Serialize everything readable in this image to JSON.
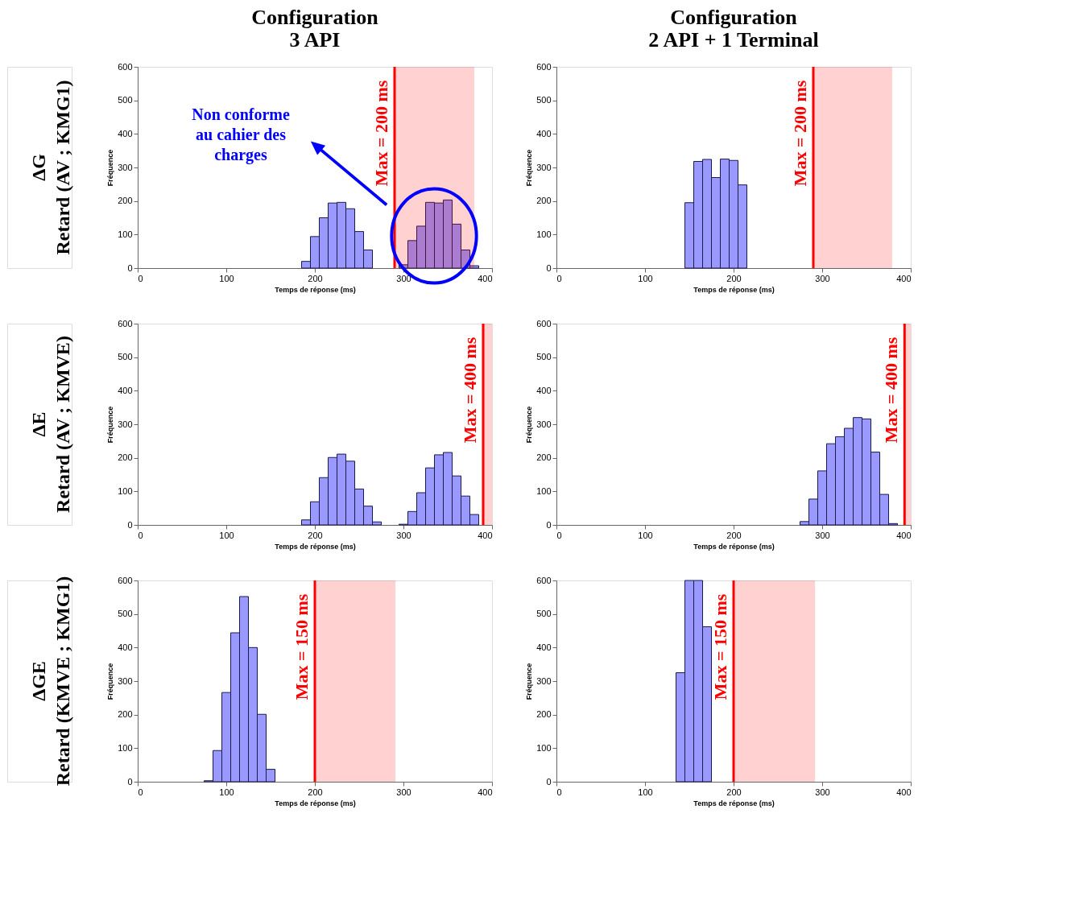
{
  "chart_data": [
    {
      "type": "histogram",
      "title": "Configuration\n3 API",
      "xlabel": "Temps de réponse (ms)",
      "ylabel": "Fréquence",
      "color": "#9999ff",
      "bins": [
        185,
        195,
        205,
        215,
        225,
        235,
        245,
        255,
        265,
        275,
        285,
        295,
        305,
        315,
        325,
        335,
        345,
        355,
        365,
        375,
        385
      ],
      "values": [
        20,
        94,
        150,
        194,
        196,
        177,
        109,
        54,
        0,
        0,
        0,
        10,
        82,
        125,
        196,
        194,
        203,
        131,
        54,
        7
      ],
      "xlim": [
        0,
        400
      ],
      "xticks": [
        0,
        100,
        200,
        300,
        400
      ],
      "ylim": [
        0,
        600
      ],
      "yticks": [
        0,
        100,
        200,
        300,
        400,
        500,
        600
      ],
      "grid": false,
      "ref_lines": [
        {
          "axis": "x",
          "value": 290,
          "color": "#ff0000"
        }
      ],
      "bands": [
        {
          "axis": "x",
          "from": 290,
          "to": 380,
          "color": "#ff0000"
        }
      ],
      "annotations": [
        "ΔG\nRetard (AV ; KMG1)",
        "Max = 200 ms",
        "Non conforme\nau cahier des\ncharges"
      ]
    },
    {
      "type": "histogram",
      "title": "Configuration\n2 API + 1 Terminal",
      "xlabel": "Temps de réponse (ms)",
      "ylabel": "Fréquence",
      "color": "#9999ff",
      "bins": [
        145,
        155,
        165,
        175,
        185,
        195,
        205,
        215
      ],
      "values": [
        195,
        318,
        324,
        270,
        325,
        321,
        248
      ],
      "xlim": [
        0,
        400
      ],
      "xticks": [
        0,
        100,
        200,
        300,
        400
      ],
      "ylim": [
        0,
        600
      ],
      "yticks": [
        0,
        100,
        200,
        300,
        400,
        500,
        600
      ],
      "grid": false,
      "ref_lines": [
        {
          "axis": "x",
          "value": 290,
          "color": "#ff0000"
        }
      ],
      "bands": [
        {
          "axis": "x",
          "from": 290,
          "to": 379,
          "color": "#ff0000"
        }
      ],
      "annotations": [
        "Max = 200 ms"
      ]
    },
    {
      "type": "histogram",
      "xlabel": "Temps de réponse (ms)",
      "ylabel": "Fréquence",
      "color": "#9999ff",
      "bins": [
        185,
        195,
        205,
        215,
        225,
        235,
        245,
        255,
        265,
        275,
        285,
        295,
        305,
        315,
        325,
        335,
        345,
        355,
        365,
        375,
        385
      ],
      "values": [
        15,
        69,
        141,
        201,
        211,
        190,
        107,
        56,
        9,
        0,
        0,
        2,
        40,
        96,
        170,
        209,
        216,
        146,
        86,
        31
      ],
      "xlim": [
        0,
        400
      ],
      "xticks": [
        0,
        100,
        200,
        300,
        400
      ],
      "ylim": [
        0,
        600
      ],
      "yticks": [
        0,
        100,
        200,
        300,
        400,
        500,
        600
      ],
      "grid": false,
      "ref_lines": [
        {
          "axis": "x",
          "value": 390,
          "color": "#ff0000"
        }
      ],
      "bands": [
        {
          "axis": "x",
          "from": 390,
          "to": 400,
          "color": "#ff0000"
        }
      ],
      "annotations": [
        "ΔE\nRetard (AV ; KMVE)",
        "Max = 400 ms"
      ]
    },
    {
      "type": "histogram",
      "xlabel": "Temps de réponse (ms)",
      "ylabel": "Fréquence",
      "color": "#9999ff",
      "bins": [
        275,
        285,
        295,
        305,
        315,
        325,
        335,
        345,
        355,
        365,
        375,
        385
      ],
      "values": [
        10,
        77,
        161,
        242,
        263,
        288,
        320,
        316,
        217,
        91,
        4
      ],
      "xlim": [
        0,
        400
      ],
      "xticks": [
        0,
        100,
        200,
        300,
        400
      ],
      "ylim": [
        0,
        600
      ],
      "yticks": [
        0,
        100,
        200,
        300,
        400,
        500,
        600
      ],
      "grid": false,
      "ref_lines": [
        {
          "axis": "x",
          "value": 393,
          "color": "#ff0000"
        }
      ],
      "bands": [
        {
          "axis": "x",
          "from": 393,
          "to": 400,
          "color": "#ff0000"
        }
      ],
      "annotations": [
        "Max = 400 ms"
      ]
    },
    {
      "type": "histogram",
      "xlabel": "Temps de réponse (ms)",
      "ylabel": "Fréquence",
      "color": "#9999ff",
      "bins": [
        75,
        85,
        95,
        105,
        115,
        125,
        135,
        145,
        155
      ],
      "values": [
        3,
        93,
        266,
        444,
        552,
        400,
        201,
        37
      ],
      "xlim": [
        0,
        400
      ],
      "xticks": [
        0,
        100,
        200,
        300,
        400
      ],
      "ylim": [
        0,
        600
      ],
      "yticks": [
        0,
        100,
        200,
        300,
        400,
        500,
        600
      ],
      "grid": false,
      "ref_lines": [
        {
          "axis": "x",
          "value": 200,
          "color": "#ff0000"
        }
      ],
      "bands": [
        {
          "axis": "x",
          "from": 200,
          "to": 291,
          "color": "#ff0000"
        }
      ],
      "annotations": [
        "ΔGE\nRetard (KMVE ; KMG1)",
        "Max = 150 ms"
      ]
    },
    {
      "type": "histogram",
      "xlabel": "Temps de réponse (ms)",
      "ylabel": "Fréquence",
      "color": "#9999ff",
      "bins": [
        135,
        145,
        155,
        165,
        175
      ],
      "values": [
        325,
        600,
        600,
        462
      ],
      "xlim": [
        0,
        400
      ],
      "xticks": [
        0,
        100,
        200,
        300,
        400
      ],
      "ylim": [
        0,
        600
      ],
      "yticks": [
        0,
        100,
        200,
        300,
        400,
        500,
        600
      ],
      "grid": false,
      "ref_lines": [
        {
          "axis": "x",
          "value": 200,
          "color": "#ff0000"
        }
      ],
      "bands": [
        {
          "axis": "x",
          "from": 200,
          "to": 292,
          "color": "#ff0000"
        }
      ],
      "annotations": [
        "Max = 150 ms"
      ]
    }
  ]
}
